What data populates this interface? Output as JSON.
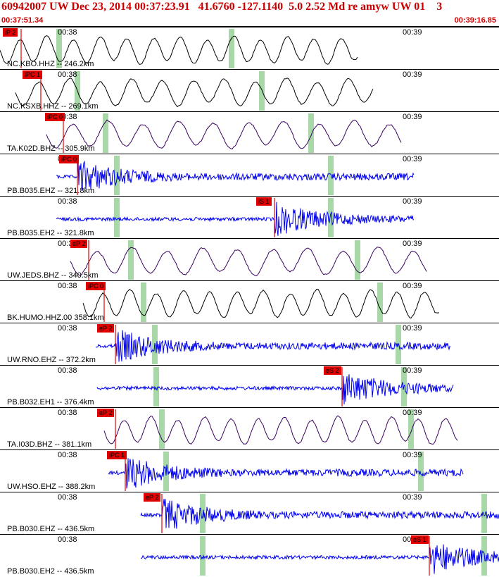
{
  "header": {
    "title": "60942007 UW Dec 23, 2014 00:37:23.91   41.6760 -127.1140  5.0 2.52 Md re amyw UW 01    3",
    "start_time": "00:37:51.34",
    "end_time": "00:39:16.85"
  },
  "colors": {
    "header_text": "#cc0000",
    "pick": "#e00000",
    "green_band": "#a8d8a8",
    "trace_black": "#000000",
    "trace_blue": "#0000ee",
    "trace_purple": "#3a0060"
  },
  "tick_labels": {
    "first": "00:38",
    "second": "00:39"
  },
  "channels": [
    {
      "label": "NC.KBO.HHZ -- 246.2km",
      "color": "black",
      "pick": "iP 2",
      "type": "smooth"
    },
    {
      "label": "NC.KSXB.HHZ -- 269.1km",
      "color": "black",
      "pick": "iPC 1",
      "type": "smooth"
    },
    {
      "label": "TA.K02D.BHZ -- 305.9km",
      "color": "purple",
      "pick": "iPC 0",
      "type": "smooth"
    },
    {
      "label": "PB.B035.EHZ -- 321.8km",
      "color": "blue",
      "pick": "iPC 0",
      "type": "noise"
    },
    {
      "label": "PB.B035.EH2 -- 321.8km",
      "color": "blue",
      "pick": "iS 1",
      "type": "noise"
    },
    {
      "label": "UW.JEDS.BHZ -- 340.5km",
      "color": "purple",
      "pick": "eP 2",
      "type": "smooth"
    },
    {
      "label": "BK.HUMO.HHZ.00 358.1km",
      "color": "black",
      "pick": "iPC 0",
      "type": "smooth"
    },
    {
      "label": "UW.RNO.EHZ -- 372.2km",
      "color": "blue",
      "pick": "eP 2",
      "type": "noise"
    },
    {
      "label": "PB.B032.EH1 -- 376.4km",
      "color": "blue",
      "pick": "eS 2",
      "type": "noise"
    },
    {
      "label": "TA.I03D.BHZ -- 381.1km",
      "color": "purple",
      "pick": "eP 2",
      "type": "smooth"
    },
    {
      "label": "UW.HSO.EHZ -- 388.2km",
      "color": "blue",
      "pick": "iPC 1",
      "type": "noise"
    },
    {
      "label": "PB.B030.EHZ -- 436.5km",
      "color": "blue",
      "pick": "eP 2",
      "type": "noise"
    },
    {
      "label": "PB.B030.EH2 -- 436.5km",
      "color": "blue",
      "pick": "eS 1",
      "type": "noise"
    }
  ]
}
